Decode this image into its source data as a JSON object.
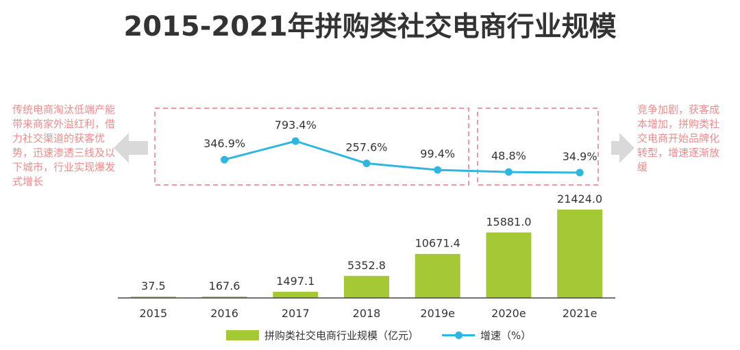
{
  "title": "2015-2021年拼购类社交电商行业规模",
  "left_note": "传统电商淘汰低端产能带来商家外溢红利，借力社交渠道的获客优势，迅速渗透三线及以下城市，行业实现爆发式增长",
  "right_note": "竞争加剧，获客成本增加，拼购类社交电商开始品牌化转型，增速逐渐放缓",
  "colors": {
    "bar": "#a5c934",
    "line": "#2db6e0",
    "box": "#ee9aa5",
    "arrow": "#d9d9d9",
    "note": "#ee8c8c"
  },
  "chart_data": {
    "type": "bar",
    "categories": [
      "2015",
      "2016",
      "2017",
      "2018",
      "2019e",
      "2020e",
      "2021e"
    ],
    "series": [
      {
        "name": "拼购类社交电商行业规模（亿元）",
        "type": "bar",
        "values": [
          37.5,
          167.6,
          1497.1,
          5352.8,
          10671.4,
          15881.0,
          21424.0
        ],
        "labels": [
          "37.5",
          "167.6",
          "1497.1",
          "5352.8",
          "10671.4",
          "15881.0",
          "21424.0"
        ]
      },
      {
        "name": "增速（%）",
        "type": "line",
        "values": [
          null,
          346.9,
          793.4,
          257.6,
          99.4,
          48.8,
          34.9
        ],
        "labels": [
          "",
          "346.9%",
          "793.4%",
          "257.6%",
          "99.4%",
          "48.8%",
          "34.9%"
        ]
      }
    ],
    "legend": [
      "拼购类社交电商行业规模（亿元）",
      "增速（%）"
    ],
    "legend_position": "bottom",
    "grid": false
  }
}
